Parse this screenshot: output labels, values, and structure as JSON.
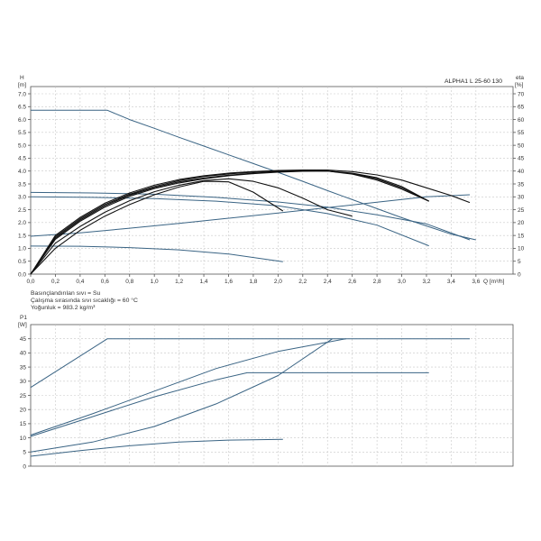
{
  "chart_data": [
    {
      "type": "line",
      "id": "hq",
      "title": "ALPHA1 L 25-60   130",
      "xlabel": "Q [m³/h]",
      "ylabel_top": "H",
      "ylabel_bottom": "[m]",
      "y2label_top": "eta",
      "y2label_bottom": "[%]",
      "xlim": [
        0,
        3.9
      ],
      "ylim": [
        0,
        7.0
      ],
      "y2lim": [
        0,
        70
      ],
      "xticks": [
        "0.0",
        "0.2",
        "0.4",
        "0.6",
        "0.8",
        "1.0",
        "1.2",
        "1.4",
        "1.6",
        "1.8",
        "2.0",
        "2.2",
        "2.4",
        "2.6",
        "2.8",
        "3.0",
        "3.2",
        "3.4",
        "3.6"
      ],
      "yticks": [
        "0.0",
        "0.5",
        "1.0",
        "1.5",
        "2.0",
        "2.5",
        "3.0",
        "3.5",
        "4.0",
        "4.5",
        "5.0",
        "5.5",
        "6.0",
        "6.5",
        "7.0"
      ],
      "y2ticks": [
        "0",
        "5",
        "10",
        "15",
        "20",
        "25",
        "30",
        "35",
        "40",
        "45",
        "50",
        "55",
        "60",
        "65",
        "70"
      ],
      "grid": true,
      "colors": {
        "head": "#3a6484",
        "eta": "#111111"
      },
      "series": [
        {
          "kind": "head",
          "x": [
            0,
            0.62,
            0.8,
            1.0,
            1.2,
            1.4,
            1.6,
            1.8,
            2.0,
            2.2,
            2.4,
            2.6,
            2.8,
            3.0,
            3.2,
            3.4,
            3.6
          ],
          "y": [
            6.36,
            6.36,
            6.0,
            5.66,
            5.31,
            4.97,
            4.63,
            4.29,
            3.95,
            3.6,
            3.24,
            2.89,
            2.54,
            2.19,
            1.87,
            1.55,
            1.33
          ]
        },
        {
          "kind": "head",
          "x": [
            0,
            0.4,
            0.8,
            1.2,
            1.6,
            2.0,
            2.4,
            2.8,
            3.2,
            3.55
          ],
          "y": [
            1.47,
            1.6,
            1.78,
            1.97,
            2.17,
            2.37,
            2.58,
            2.79,
            3.0,
            3.08
          ]
        },
        {
          "kind": "head",
          "x": [
            0,
            0.5,
            1.0,
            1.5,
            2.0,
            2.4,
            2.8,
            3.2,
            3.55
          ],
          "y": [
            3.17,
            3.15,
            3.1,
            2.98,
            2.8,
            2.6,
            2.3,
            1.95,
            1.33
          ]
        },
        {
          "kind": "head",
          "x": [
            0,
            0.5,
            1.0,
            1.5,
            2.0,
            2.4,
            2.8,
            3.22
          ],
          "y": [
            3.0,
            2.98,
            2.93,
            2.83,
            2.65,
            2.35,
            1.9,
            1.1
          ]
        },
        {
          "kind": "head",
          "x": [
            0,
            0.4,
            0.8,
            1.2,
            1.6,
            2.04
          ],
          "y": [
            1.09,
            1.08,
            1.03,
            0.94,
            0.78,
            0.48
          ]
        },
        {
          "kind": "eta",
          "x": [
            0,
            0.2,
            0.4,
            0.6,
            0.8,
            1.0,
            1.2,
            1.4,
            1.6,
            1.8,
            2.0,
            2.2,
            2.4,
            2.6,
            2.8,
            3.0,
            3.2,
            3.4,
            3.55
          ],
          "y": [
            0,
            15,
            22,
            27.5,
            31.5,
            34.5,
            36.7,
            38.2,
            39.2,
            39.8,
            40.2,
            40.4,
            40.4,
            39.8,
            38.5,
            36.5,
            33.5,
            30.5,
            27.8
          ]
        },
        {
          "kind": "eta",
          "x": [
            0,
            0.2,
            0.4,
            0.6,
            0.8,
            1.0,
            1.2,
            1.4,
            1.6,
            1.8,
            2.0,
            2.2,
            2.4,
            2.6,
            2.8,
            3.0,
            3.22
          ],
          "y": [
            0,
            14.5,
            21.5,
            27,
            31,
            34,
            36.3,
            37.9,
            38.9,
            39.6,
            40.0,
            40.2,
            40.0,
            38.8,
            36.5,
            33.0,
            28.3
          ]
        },
        {
          "kind": "eta",
          "x": [
            0,
            0.2,
            0.4,
            0.6,
            0.8,
            1.0,
            1.2,
            1.4,
            1.6,
            1.8,
            2.0,
            2.2,
            2.4,
            2.6,
            2.8,
            3.0,
            3.22
          ],
          "y": [
            0,
            14,
            21,
            26.5,
            30.7,
            33.6,
            35.8,
            37.3,
            38.4,
            39.2,
            39.7,
            40.0,
            40.0,
            39.0,
            37.0,
            33.5,
            28.3
          ]
        },
        {
          "kind": "eta",
          "x": [
            0,
            0.2,
            0.4,
            0.6,
            0.8,
            1.0,
            1.2,
            1.4,
            1.6,
            1.8,
            2.0,
            2.2,
            2.4,
            2.6,
            2.8,
            3.0,
            3.22
          ],
          "y": [
            0,
            13.5,
            20.5,
            26,
            30.2,
            33.2,
            35.4,
            37.0,
            38.2,
            39.0,
            39.6,
            39.9,
            40.0,
            39.2,
            37.4,
            34.0,
            28.3
          ]
        },
        {
          "kind": "eta",
          "x": [
            0,
            0.2,
            0.4,
            0.6,
            0.8,
            1.0,
            1.2,
            1.4,
            1.6,
            1.8,
            2.0,
            2.2,
            2.4,
            2.6
          ],
          "y": [
            0,
            12,
            18.5,
            24,
            28.5,
            32,
            34.5,
            36.3,
            37.0,
            36.0,
            33.5,
            29.5,
            25.0,
            22.5
          ]
        },
        {
          "kind": "eta",
          "x": [
            0,
            0.2,
            0.4,
            0.6,
            0.8,
            1.0,
            1.2,
            1.4,
            1.6,
            1.8,
            2.04
          ],
          "y": [
            0,
            10,
            17,
            22.5,
            27,
            30.8,
            33.8,
            36.0,
            35.8,
            31.8,
            24.5
          ]
        }
      ]
    },
    {
      "type": "line",
      "id": "p1",
      "ylabel_top": "P1",
      "ylabel_bottom": "[W]",
      "xlim": [
        0,
        3.9
      ],
      "ylim": [
        0,
        50
      ],
      "yticks": [
        "0",
        "5",
        "10",
        "15",
        "20",
        "25",
        "30",
        "35",
        "40",
        "45"
      ],
      "grid": true,
      "colors": {
        "power": "#3a6484"
      },
      "series": [
        {
          "x": [
            0,
            0.62,
            3.55
          ],
          "y": [
            27.8,
            45,
            45
          ]
        },
        {
          "x": [
            0,
            0.5,
            1.0,
            1.5,
            2.0,
            2.55
          ],
          "y": [
            11,
            18.5,
            26.5,
            34.5,
            40.5,
            45
          ]
        },
        {
          "x": [
            0,
            0.5,
            1.0,
            1.5,
            1.75,
            3.22
          ],
          "y": [
            10.5,
            17.5,
            24.5,
            30.5,
            33,
            33
          ]
        },
        {
          "x": [
            0,
            0.5,
            1.0,
            1.5,
            2.0,
            2.44
          ],
          "y": [
            5,
            8.5,
            14,
            22,
            32,
            45
          ]
        },
        {
          "x": [
            0,
            0.4,
            0.8,
            1.2,
            1.6,
            2.04
          ],
          "y": [
            3.5,
            5.5,
            7.2,
            8.5,
            9.2,
            9.5
          ]
        }
      ]
    }
  ],
  "notes": [
    "Basınçlandırılan sıvı = Su",
    "Çalışma sırasında sıvı sıcaklığı = 60 °C",
    "Yoğunluk = 983.2 kg/m³"
  ]
}
